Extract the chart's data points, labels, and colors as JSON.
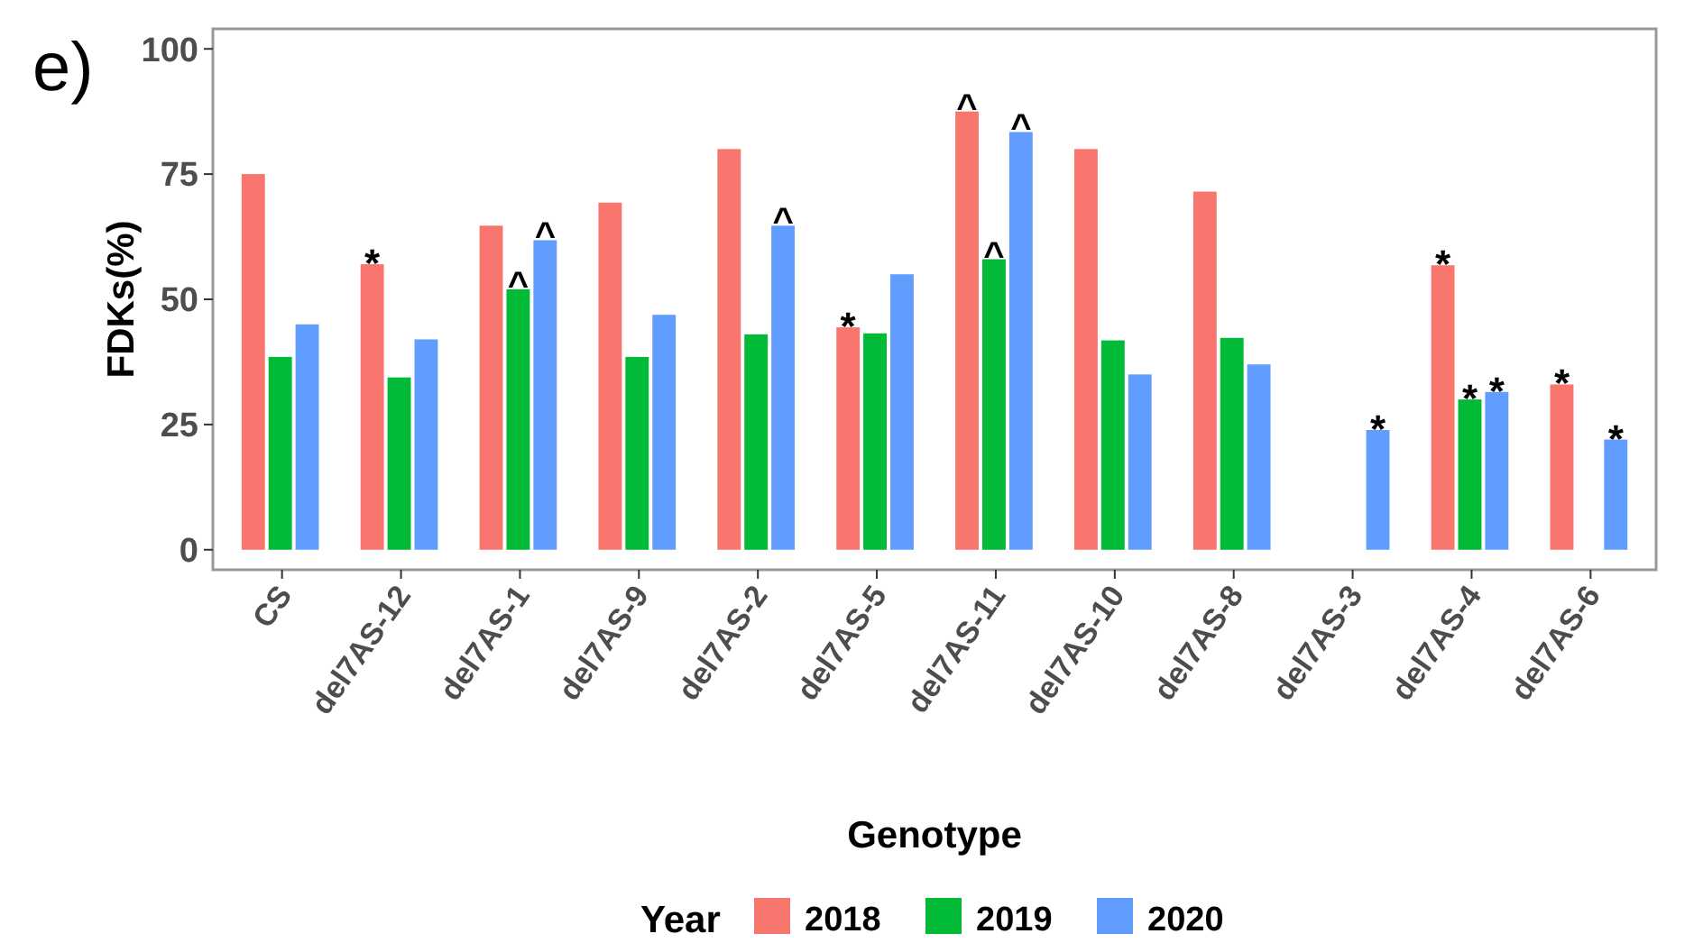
{
  "chart_data": {
    "type": "bar",
    "xlabel": "Genotype",
    "ylabel": "FDKs(%)",
    "legend_title": "Year",
    "legend": "bottom",
    "grid": false,
    "categories": [
      "CS",
      "del7AS-12",
      "del7AS-1",
      "del7AS-9",
      "del7AS-2",
      "del7AS-5",
      "del7AS-11",
      "del7AS-10",
      "del7AS-8",
      "del7AS-3",
      "del7AS-4",
      "del7AS-6"
    ],
    "series": [
      {
        "name": "2018",
        "color": "#f8766d",
        "values": [
          75,
          57,
          64.7,
          69.3,
          80,
          44.4,
          87.5,
          80,
          71.5,
          null,
          56.8,
          33
        ]
      },
      {
        "name": "2019",
        "color": "#00ba38",
        "values": [
          38.5,
          34.4,
          52,
          38.5,
          43,
          43.2,
          58,
          41.8,
          42.3,
          null,
          30,
          null
        ]
      },
      {
        "name": "2020",
        "color": "#619cff",
        "values": [
          45,
          42,
          61.8,
          46.9,
          64.7,
          55,
          83.4,
          35,
          37,
          23.9,
          31.5,
          22
        ]
      }
    ],
    "ylim": [
      -4,
      104
    ],
    "yticks": [
      0,
      25,
      50,
      75,
      100
    ],
    "annotations": [
      "e)",
      "*",
      "^",
      "^",
      "^",
      "*",
      "^",
      "^",
      "^",
      "*",
      "*",
      "*",
      "*",
      "*",
      "*"
    ]
  }
}
